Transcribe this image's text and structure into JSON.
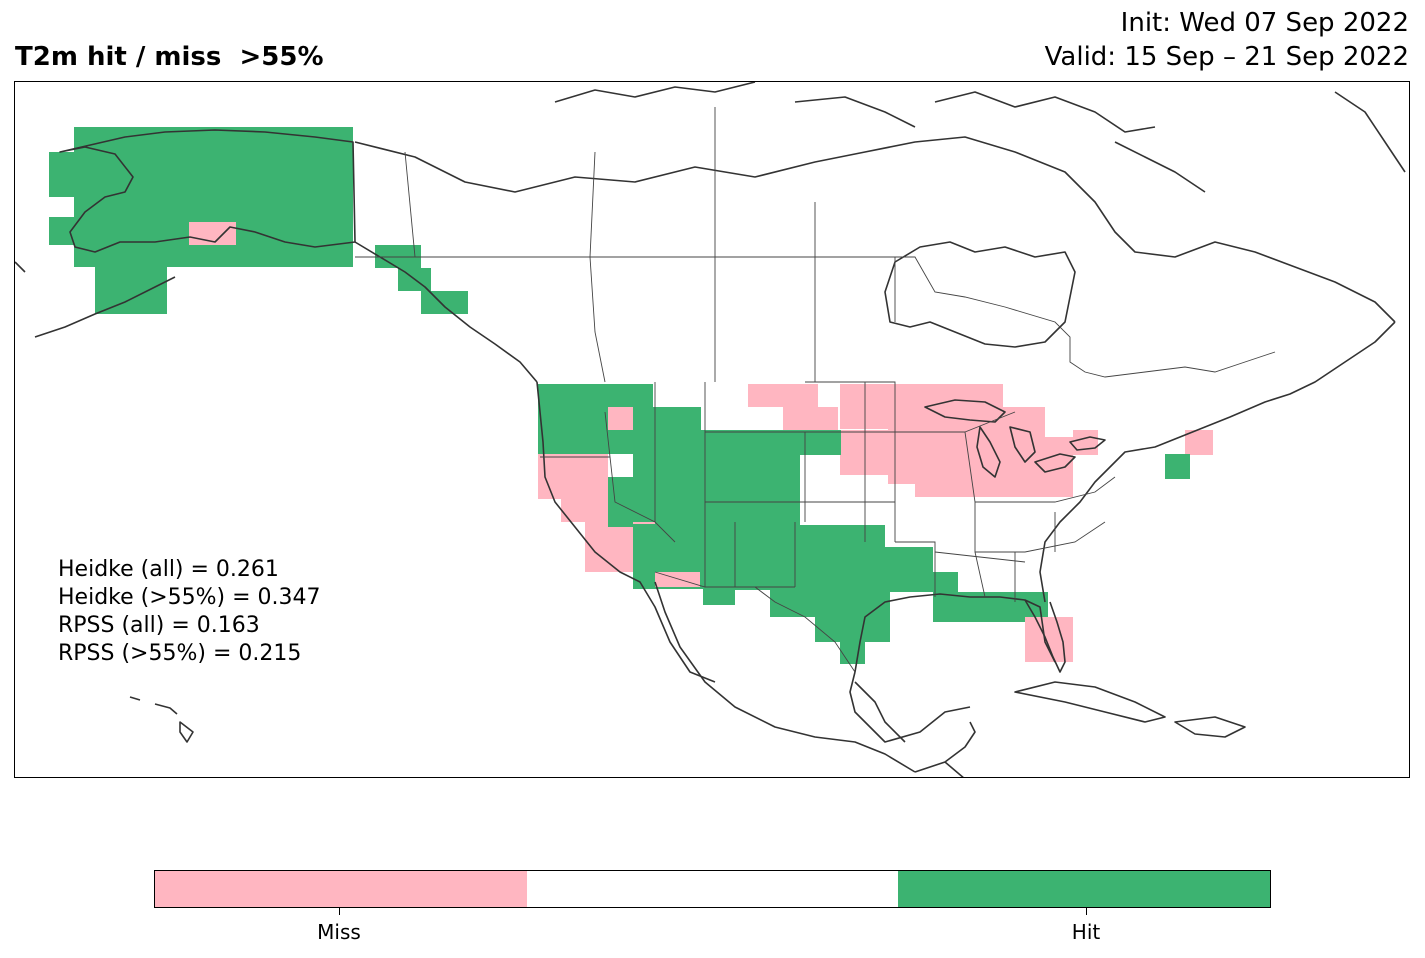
{
  "header": {
    "title": "T2m hit / miss  >55%",
    "init": "Init: Wed 07 Sep 2022",
    "valid": "Valid: 15 Sep – 21 Sep 2022"
  },
  "scores": [
    "Heidke (all) = 0.261",
    "Heidke (>55%) = 0.347",
    "RPSS (all) = 0.163",
    "RPSS (>55%) = 0.215"
  ],
  "colors": {
    "hit": "#3cb371",
    "miss": "#ffb6c1",
    "neutral": "#ffffff",
    "coast": "#333333"
  },
  "colorbar": {
    "segments": [
      "miss",
      "neutral",
      "hit"
    ],
    "labels": [
      "Miss",
      "Hit"
    ]
  }
}
